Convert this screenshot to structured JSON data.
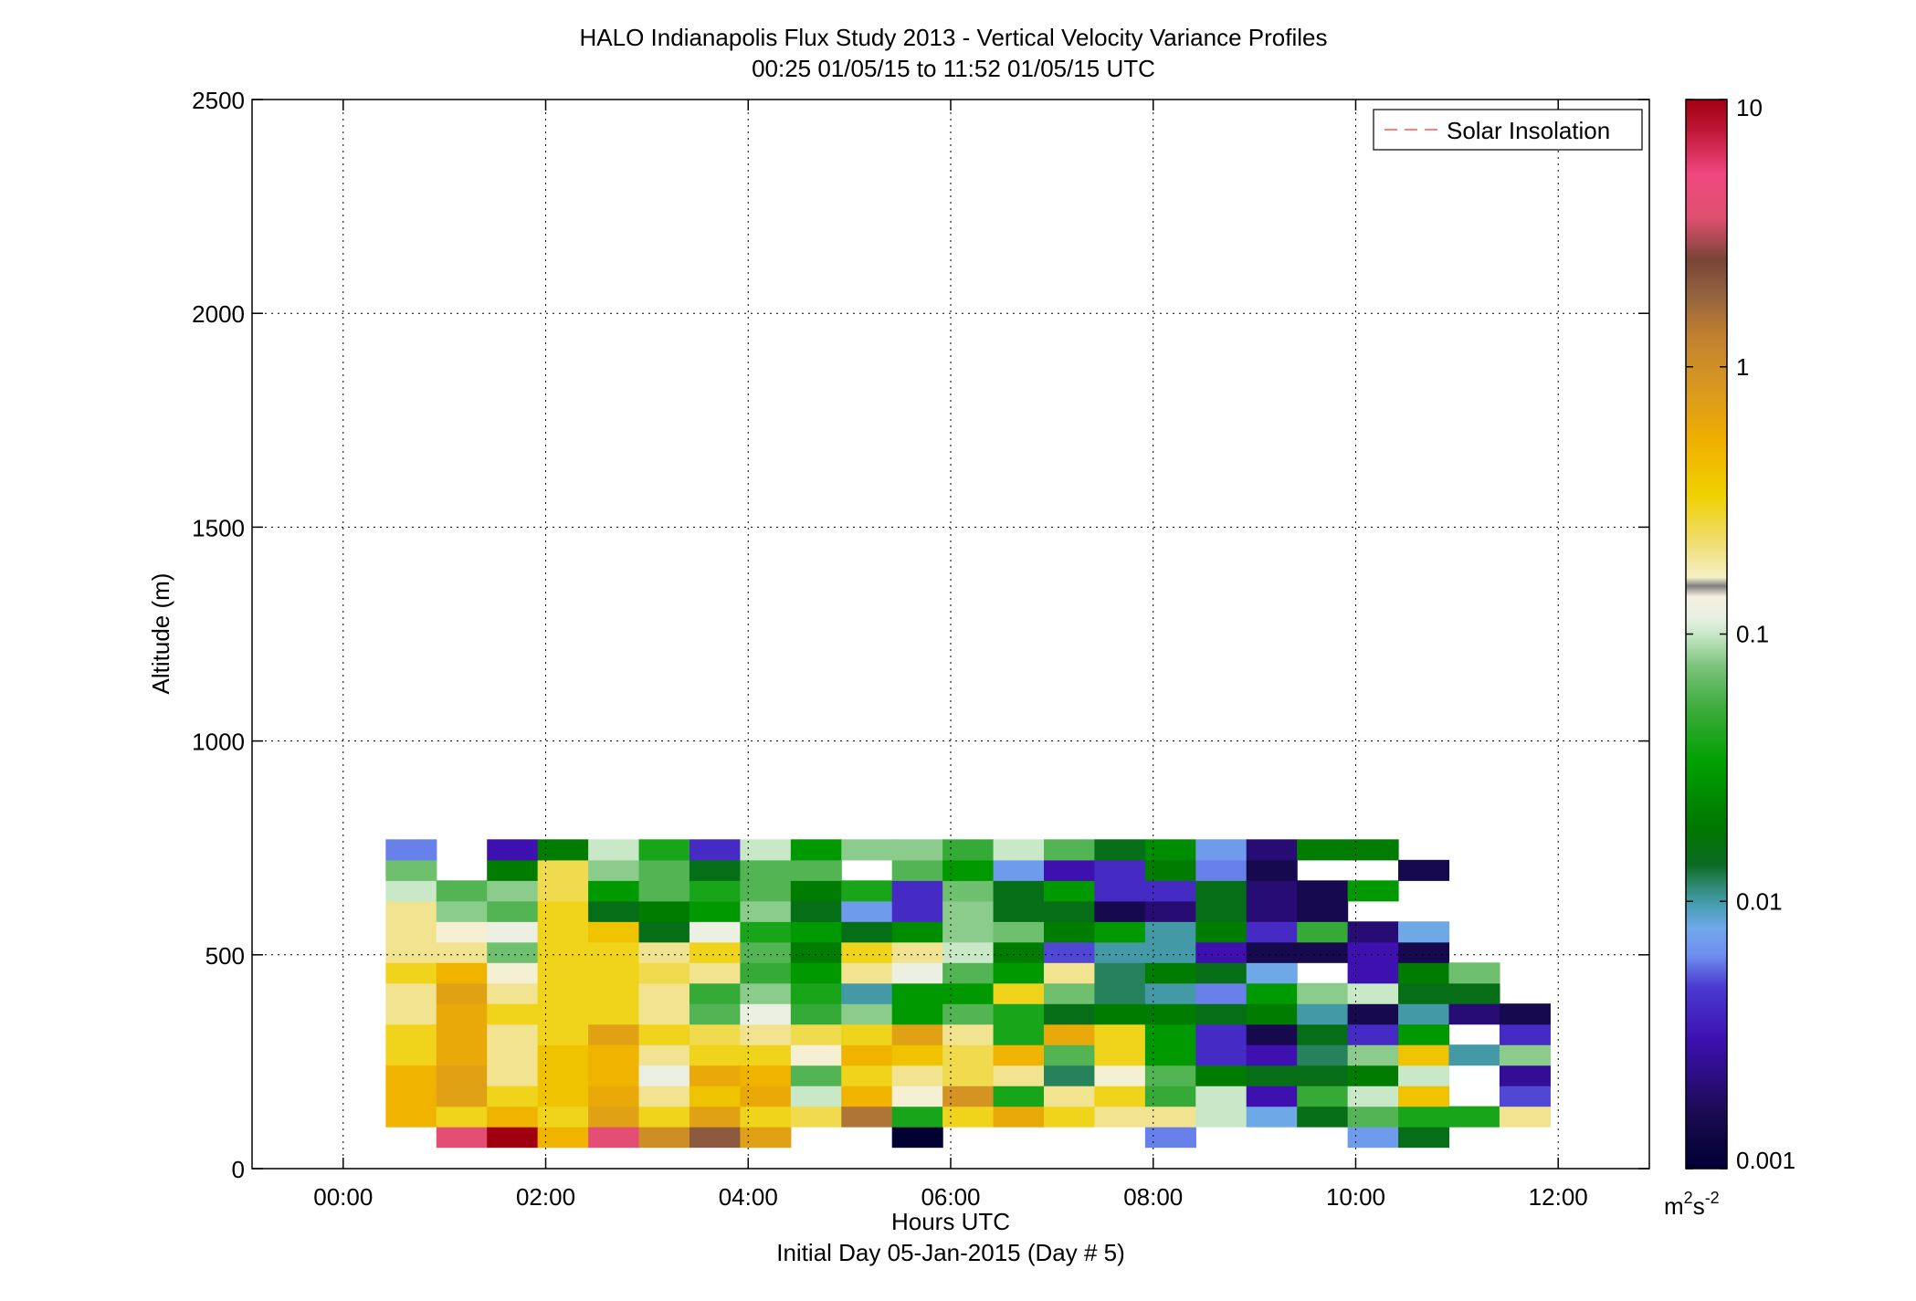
{
  "figure": {
    "title_line1": "HALO Indianapolis Flux Study 2013 - Vertical Velocity Variance Profiles",
    "title_line2": "00:25 01/05/15 to 11:52 01/05/15  UTC",
    "xlabel": "Hours UTC",
    "subcaption": "Initial Day 05-Jan-2015 (Day # 5)",
    "ylabel": "Altitude (m)",
    "legend_label": "Solar Insolation",
    "colorbar_unit": "m",
    "colorbar_unit_exp1": "2",
    "colorbar_unit_mid": "s",
    "colorbar_unit_exp2": "-2"
  },
  "chart_data": {
    "type": "heatmap",
    "title": "HALO Indianapolis Flux Study 2013 - Vertical Velocity Variance Profiles",
    "subtitle": "00:25 01/05/15 to 11:52 01/05/15  UTC",
    "xlabel": "Hours UTC",
    "ylabel": "Altitude (m)",
    "x_unit": "hours UTC",
    "xlim": [
      -0.9,
      12.9
    ],
    "ylim": [
      0,
      2500
    ],
    "x_ticks": [
      0,
      2,
      4,
      6,
      8,
      10,
      12
    ],
    "x_tick_labels": [
      "00:00",
      "02:00",
      "04:00",
      "06:00",
      "08:00",
      "10:00",
      "12:00"
    ],
    "y_ticks": [
      0,
      500,
      1000,
      1500,
      2000,
      2500
    ],
    "y_tick_labels": [
      "0",
      "500",
      "1000",
      "1500",
      "2000",
      "2500"
    ],
    "grid": true,
    "legend": {
      "position": "top-right",
      "entries": [
        {
          "name": "Solar Insolation",
          "color": "#ff8080",
          "style": "dashed"
        }
      ]
    },
    "colorbar": {
      "scale": "log",
      "range": [
        0.001,
        10
      ],
      "ticks": [
        0.001,
        0.01,
        0.1,
        1,
        10
      ],
      "tick_labels": [
        "0.001",
        "0.01",
        "0.1",
        "1",
        "10"
      ],
      "units": "m^2 s^-2"
    },
    "time_start_hours": 0.42,
    "time_step_hours": 0.5,
    "altitude_start_m": 50,
    "altitude_step_m": 48,
    "note_values": "variance in m^2 s^-2; each column is a 30-min profile, each row a 48 m range gate; null = no data",
    "profiles": [
      [
        null,
        0.5,
        0.5,
        0.5,
        0.3,
        0.3,
        0.2,
        0.2,
        0.3,
        0.2,
        0.2,
        0.2,
        0.1,
        0.07,
        0.006
      ],
      [
        4,
        0.3,
        0.7,
        0.7,
        0.6,
        0.6,
        0.6,
        0.7,
        0.5,
        0.2,
        0.15,
        0.08,
        0.06,
        null,
        null
      ],
      [
        10,
        0.5,
        0.3,
        0.2,
        0.2,
        0.2,
        0.3,
        0.2,
        0.15,
        0.07,
        0.12,
        0.06,
        0.08,
        0.02,
        0.003
      ],
      [
        0.5,
        0.3,
        0.4,
        0.4,
        0.4,
        0.3,
        0.3,
        0.3,
        0.3,
        0.3,
        0.3,
        0.3,
        0.25,
        0.25,
        0.02
      ],
      [
        4,
        0.7,
        0.6,
        0.5,
        0.5,
        0.7,
        0.3,
        0.3,
        0.3,
        0.3,
        0.4,
        0.015,
        0.03,
        0.08,
        0.1
      ],
      [
        1,
        0.3,
        0.2,
        0.12,
        0.2,
        0.3,
        0.2,
        0.2,
        0.25,
        0.2,
        0.015,
        0.02,
        0.06,
        0.06,
        0.04
      ],
      [
        2,
        0.7,
        0.4,
        0.6,
        0.3,
        0.25,
        0.06,
        0.05,
        0.2,
        0.3,
        0.12,
        0.03,
        0.04,
        0.015,
        0.004
      ],
      [
        0.7,
        0.3,
        0.6,
        0.5,
        0.3,
        0.2,
        0.12,
        0.08,
        0.05,
        0.06,
        0.04,
        0.08,
        0.06,
        0.06,
        0.1
      ],
      [
        null,
        0.25,
        0.1,
        0.06,
        0.15,
        0.25,
        0.05,
        0.04,
        0.03,
        0.02,
        0.03,
        0.015,
        0.02,
        0.06,
        0.03
      ],
      [
        null,
        1.5,
        0.5,
        0.3,
        0.5,
        0.3,
        0.08,
        0.01,
        0.2,
        0.3,
        0.015,
        0.007,
        0.04,
        null,
        0.08
      ],
      [
        0.001,
        0.04,
        0.15,
        0.2,
        0.4,
        0.7,
        0.03,
        0.03,
        0.12,
        0.2,
        0.025,
        0.004,
        0.004,
        0.06,
        0.08
      ],
      [
        null,
        0.3,
        0.9,
        0.25,
        0.25,
        0.2,
        0.06,
        0.03,
        0.06,
        0.1,
        0.08,
        0.08,
        0.07,
        0.03,
        0.05
      ],
      [
        null,
        0.6,
        0.04,
        0.2,
        0.5,
        0.04,
        0.04,
        0.3,
        0.03,
        0.02,
        0.07,
        0.015,
        0.015,
        0.007,
        0.1
      ],
      [
        null,
        0.3,
        0.2,
        0.012,
        0.06,
        0.6,
        0.015,
        0.07,
        0.2,
        0.005,
        0.02,
        0.015,
        0.03,
        0.003,
        0.06
      ],
      [
        null,
        0.2,
        0.3,
        0.15,
        0.3,
        0.3,
        0.02,
        0.012,
        0.012,
        0.01,
        0.03,
        0.0015,
        0.004,
        0.004,
        0.015
      ],
      [
        0.006,
        0.2,
        0.05,
        0.06,
        0.03,
        0.03,
        0.02,
        0.01,
        0.02,
        0.01,
        0.01,
        0.002,
        0.004,
        0.02,
        0.025
      ],
      [
        null,
        0.1,
        0.1,
        0.02,
        0.004,
        0.004,
        0.015,
        0.006,
        0.015,
        0.003,
        0.02,
        0.015,
        0.015,
        0.006,
        0.007
      ],
      [
        null,
        0.008,
        0.003,
        0.015,
        0.003,
        0.0015,
        0.02,
        0.03,
        0.008,
        0.0015,
        0.004,
        0.002,
        0.002,
        0.0015,
        0.002
      ],
      [
        null,
        0.015,
        0.05,
        0.015,
        0.012,
        0.015,
        0.01,
        0.08,
        null,
        0.0015,
        0.05,
        0.0015,
        0.0015,
        null,
        0.02
      ],
      [
        0.007,
        0.06,
        0.1,
        0.02,
        0.08,
        0.004,
        0.0015,
        0.1,
        0.003,
        0.003,
        0.002,
        null,
        0.03,
        null,
        0.02
      ],
      [
        0.015,
        0.04,
        0.4,
        0.1,
        0.4,
        0.03,
        0.01,
        0.015,
        0.02,
        0.0015,
        0.008,
        null,
        null,
        0.0015,
        null
      ],
      [
        null,
        0.04,
        null,
        null,
        0.01,
        null,
        0.002,
        0.015,
        0.07,
        null,
        null,
        null,
        null,
        null,
        null
      ],
      [
        null,
        0.2,
        0.005,
        0.0025,
        0.08,
        0.004,
        0.0015,
        null,
        null,
        null,
        null,
        null,
        null,
        null,
        null
      ],
      [
        null,
        null,
        null,
        null,
        null,
        null,
        null,
        null,
        null,
        null,
        null,
        null,
        null,
        null,
        null
      ]
    ],
    "note_profiles": "profiles[c][r]: c = time column index (0..23), r = altitude gate index (0..14)"
  }
}
